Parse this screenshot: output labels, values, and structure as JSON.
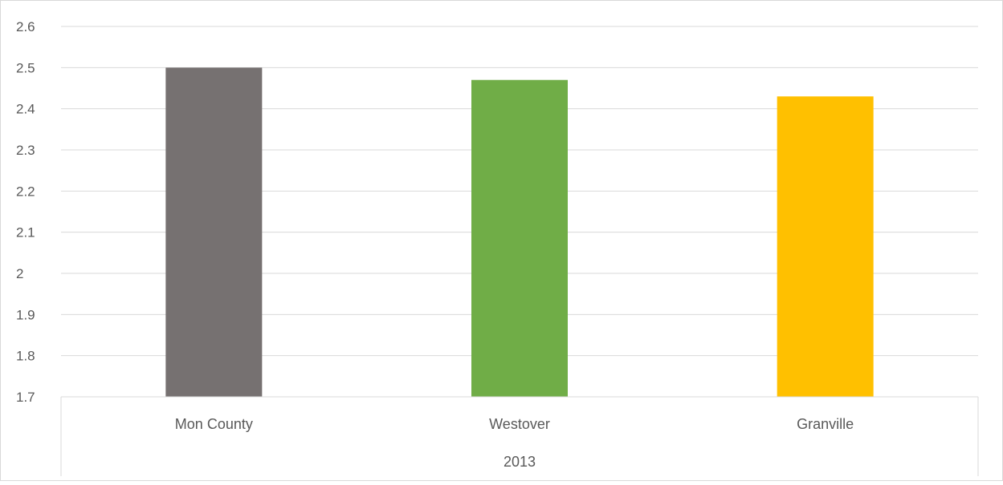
{
  "chart_data": {
    "type": "bar",
    "categories": [
      "Mon County",
      "Westover",
      "Granville"
    ],
    "group_label": "2013",
    "values": [
      2.5,
      2.47,
      2.43
    ],
    "colors": [
      "#767171",
      "#70AD47",
      "#FFC000"
    ],
    "ylim": [
      1.7,
      2.6
    ],
    "yticks": [
      "2.6",
      "2.5",
      "2.4",
      "2.3",
      "2.2",
      "2.1",
      "2",
      "1.9",
      "1.8",
      "1.7"
    ],
    "grid": true,
    "legend": "none"
  }
}
